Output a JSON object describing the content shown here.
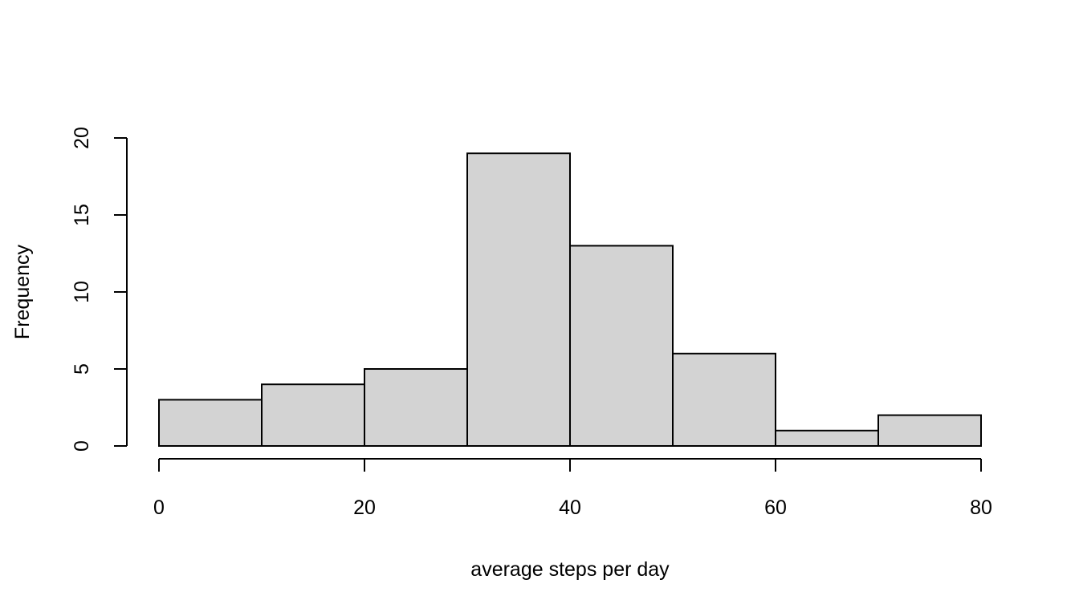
{
  "chart_data": {
    "type": "bar",
    "subtype": "histogram",
    "bins": [
      {
        "from": 0,
        "to": 10,
        "count": 3
      },
      {
        "from": 10,
        "to": 20,
        "count": 4
      },
      {
        "from": 20,
        "to": 30,
        "count": 5
      },
      {
        "from": 30,
        "to": 40,
        "count": 19
      },
      {
        "from": 40,
        "to": 50,
        "count": 13
      },
      {
        "from": 50,
        "to": 60,
        "count": 6
      },
      {
        "from": 60,
        "to": 70,
        "count": 1
      },
      {
        "from": 70,
        "to": 80,
        "count": 2
      }
    ],
    "title": "",
    "xlabel": "average steps per day",
    "ylabel": "Frequency",
    "xlim": [
      0,
      80
    ],
    "ylim": [
      0,
      20
    ],
    "x_ticks": [
      0,
      20,
      40,
      60,
      80
    ],
    "y_ticks": [
      0,
      5,
      10,
      15,
      20
    ],
    "grid": false,
    "bar_fill": "#d3d3d3",
    "bar_stroke": "#000000"
  }
}
